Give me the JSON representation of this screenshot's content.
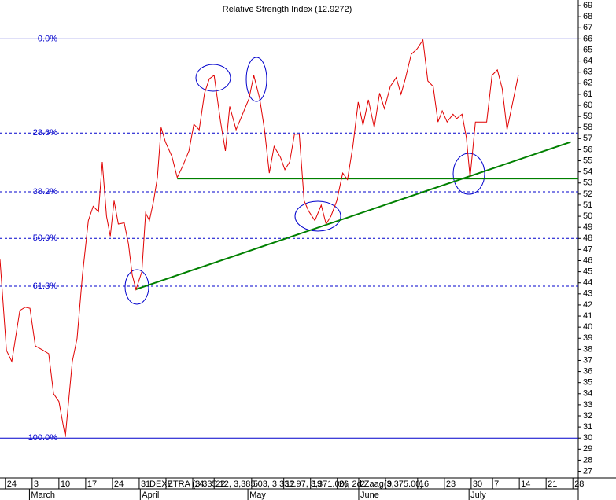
{
  "chart_data": {
    "type": "line",
    "title": "Relative Strength Index (12.9272)",
    "annotation": "DEXETRA (3,335.12, 3,385.03, 3,333.97, 3,371.00), 2d Zaag(3,375.00)",
    "xlim": [
      0,
      108
    ],
    "ylim": [
      26.4,
      69.5
    ],
    "yticks": [
      27,
      28,
      29,
      30,
      31,
      32,
      33,
      34,
      35,
      36,
      37,
      38,
      39,
      40,
      41,
      42,
      43,
      44,
      45,
      46,
      47,
      48,
      49,
      50,
      51,
      52,
      53,
      54,
      55,
      56,
      57,
      58,
      59,
      60,
      61,
      62,
      63,
      64,
      65,
      66,
      67,
      68,
      69
    ],
    "xticks": [
      {
        "value": 1,
        "label": "24"
      },
      {
        "value": 6,
        "label": "3"
      },
      {
        "value": 11,
        "label": "10"
      },
      {
        "value": 16,
        "label": "17"
      },
      {
        "value": 21,
        "label": "24"
      },
      {
        "value": 26,
        "label": "31"
      },
      {
        "value": 31,
        "label": "7"
      },
      {
        "value": 36,
        "label": "14"
      },
      {
        "value": 40,
        "label": "22"
      },
      {
        "value": 47,
        "label": "5"
      },
      {
        "value": 53,
        "label": "12"
      },
      {
        "value": 58,
        "label": "19"
      },
      {
        "value": 63,
        "label": "26"
      },
      {
        "value": 67,
        "label": "2"
      },
      {
        "value": 72,
        "label": "9"
      },
      {
        "value": 78,
        "label": "16"
      },
      {
        "value": 83,
        "label": "23"
      },
      {
        "value": 88,
        "label": "30"
      },
      {
        "value": 92,
        "label": "7"
      },
      {
        "value": 97,
        "label": "14"
      },
      {
        "value": 102,
        "label": "21"
      },
      {
        "value": 107,
        "label": "28"
      }
    ],
    "months": [
      {
        "value": 5.5,
        "label": "March"
      },
      {
        "value": 26.2,
        "label": "April"
      },
      {
        "value": 46.3,
        "label": "May"
      },
      {
        "value": 67,
        "label": "June"
      },
      {
        "value": 87.6,
        "label": "July"
      }
    ],
    "fib_color": "#0000cc",
    "fib_levels": [
      {
        "value": 66,
        "label": "0.0%"
      },
      {
        "value": 57.5,
        "label": "23.6%"
      },
      {
        "value": 52.2,
        "label": "38.2%"
      },
      {
        "value": 48,
        "label": "50.0%"
      },
      {
        "value": 43.7,
        "label": "61.8%"
      },
      {
        "value": 30,
        "label": "100.0%"
      }
    ],
    "series": [
      {
        "name": "RSI",
        "color": "#e00000",
        "x": [
          0,
          1.2,
          2.2,
          3.7,
          4.7,
          5.6,
          6.6,
          8.1,
          9.1,
          10,
          11,
          12.2,
          13.5,
          14.4,
          15.4,
          16.5,
          17.4,
          18.4,
          19.1,
          19.9,
          20.6,
          21.3,
          22.1,
          23.2,
          24,
          24.7,
          25.4,
          26.5,
          27.2,
          27.9,
          28.7,
          29.4,
          30.1,
          30.9,
          32.1,
          33.1,
          34.1,
          35.3,
          36.2,
          37.2,
          38.2,
          39.1,
          40,
          41.2,
          42.1,
          42.9,
          44.1,
          45.3,
          46.5,
          47.4,
          48.5,
          49.4,
          50.3,
          51.2,
          52.4,
          53.2,
          54.1,
          55,
          55.9,
          56.8,
          57.6,
          58.8,
          60,
          60.9,
          61.8,
          62.9,
          64,
          64.9,
          65.9,
          66.9,
          67.8,
          68.8,
          69.9,
          70.9,
          71.8,
          72.9,
          74,
          74.9,
          75.7,
          76.8,
          77.9,
          79,
          79.9,
          80.9,
          81.8,
          82.6,
          83.5,
          84.6,
          85.3,
          86.3,
          87.1,
          87.8,
          88.8,
          90,
          90.9,
          91.9,
          92.9,
          93.8,
          94.7,
          95.9,
          96.8
        ],
        "values": [
          46.1,
          37.9,
          36.9,
          41.5,
          41.8,
          41.7,
          38.3,
          37.9,
          37.6,
          34.0,
          33.3,
          30.1,
          36.9,
          39.0,
          44.7,
          49.6,
          50.9,
          50.4,
          54.9,
          50.0,
          48.2,
          51.4,
          49.3,
          49.4,
          47.5,
          44.7,
          43.4,
          45.0,
          50.3,
          49.6,
          51.4,
          53.5,
          58.0,
          56.7,
          55.4,
          53.5,
          54.5,
          55.9,
          58.3,
          57.8,
          61.1,
          62.4,
          62.7,
          58.5,
          55.9,
          59.9,
          57.8,
          59.2,
          60.6,
          62.7,
          60.6,
          57.8,
          53.9,
          56.3,
          55.3,
          54.2,
          54.9,
          57.4,
          57.4,
          51.4,
          50.5,
          49.6,
          51.0,
          49.3,
          50.0,
          51.4,
          53.9,
          53.3,
          56.3,
          60.3,
          58.2,
          60.5,
          58.0,
          61.1,
          59.7,
          61.7,
          62.5,
          61.0,
          62.4,
          64.6,
          65.1,
          65.9,
          62.2,
          61.7,
          58.5,
          59.5,
          58.5,
          59.2,
          58.8,
          59.2,
          57.1,
          53.5,
          58.5,
          58.5,
          58.5,
          62.7,
          63.2,
          61.5,
          57.8,
          60.6,
          62.7
        ]
      }
    ],
    "trend_color": "#008000",
    "trendlines": [
      {
        "x": [
          33.1,
          108
        ],
        "values": [
          53.4,
          53.4
        ]
      },
      {
        "x": [
          25.3,
          106.6
        ],
        "values": [
          43.4,
          56.7
        ]
      }
    ]
  }
}
